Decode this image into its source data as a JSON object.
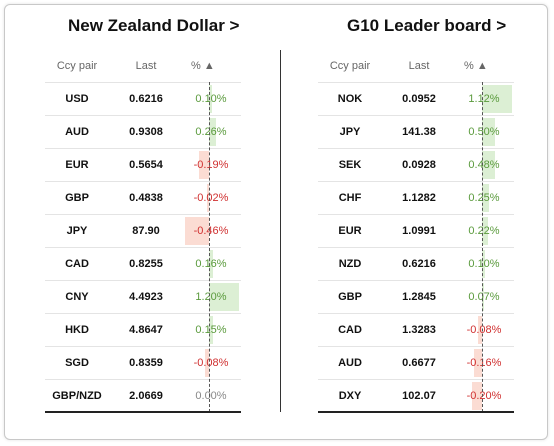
{
  "colors": {
    "positive": "#5a9a3c",
    "negative": "#d03030",
    "neutral": "#888888",
    "pos_bar": "#dcefd4",
    "neg_bar": "#fbdcd3"
  },
  "left": {
    "title": "New Zealand Dollar >",
    "headers": {
      "pair": "Ccy pair",
      "last": "Last",
      "pct": "% ▲"
    },
    "scale_max": 1.2,
    "rows": [
      {
        "pair": "USD",
        "last": "0.6216",
        "pct": "0.10%",
        "value": 0.1
      },
      {
        "pair": "AUD",
        "last": "0.9308",
        "pct": "0.26%",
        "value": 0.26
      },
      {
        "pair": "EUR",
        "last": "0.5654",
        "pct": "-0.19%",
        "value": -0.19
      },
      {
        "pair": "GBP",
        "last": "0.4838",
        "pct": "-0.02%",
        "value": -0.02
      },
      {
        "pair": "JPY",
        "last": "87.90",
        "pct": "-0.46%",
        "value": -0.46
      },
      {
        "pair": "CAD",
        "last": "0.8255",
        "pct": "0.16%",
        "value": 0.16
      },
      {
        "pair": "CNY",
        "last": "4.4923",
        "pct": "1.20%",
        "value": 1.2
      },
      {
        "pair": "HKD",
        "last": "4.8647",
        "pct": "0.15%",
        "value": 0.15
      },
      {
        "pair": "SGD",
        "last": "0.8359",
        "pct": "-0.08%",
        "value": -0.08
      },
      {
        "pair": "GBP/NZD",
        "last": "2.0669",
        "pct": "0.00%",
        "value": 0.0
      }
    ]
  },
  "right": {
    "title": "G10 Leader board >",
    "headers": {
      "pair": "Ccy pair",
      "last": "Last",
      "pct": "% ▲"
    },
    "scale_max": 1.12,
    "rows": [
      {
        "pair": "NOK",
        "last": "0.0952",
        "pct": "1.12%",
        "value": 1.12
      },
      {
        "pair": "JPY",
        "last": "141.38",
        "pct": "0.50%",
        "value": 0.5
      },
      {
        "pair": "SEK",
        "last": "0.0928",
        "pct": "0.48%",
        "value": 0.48
      },
      {
        "pair": "CHF",
        "last": "1.1282",
        "pct": "0.25%",
        "value": 0.25
      },
      {
        "pair": "EUR",
        "last": "1.0991",
        "pct": "0.22%",
        "value": 0.22
      },
      {
        "pair": "NZD",
        "last": "0.6216",
        "pct": "0.10%",
        "value": 0.1
      },
      {
        "pair": "GBP",
        "last": "1.2845",
        "pct": "0.07%",
        "value": 0.07
      },
      {
        "pair": "CAD",
        "last": "1.3283",
        "pct": "-0.08%",
        "value": -0.08
      },
      {
        "pair": "AUD",
        "last": "0.6677",
        "pct": "-0.16%",
        "value": -0.16
      },
      {
        "pair": "DXY",
        "last": "102.07",
        "pct": "-0.20%",
        "value": -0.2
      }
    ]
  }
}
